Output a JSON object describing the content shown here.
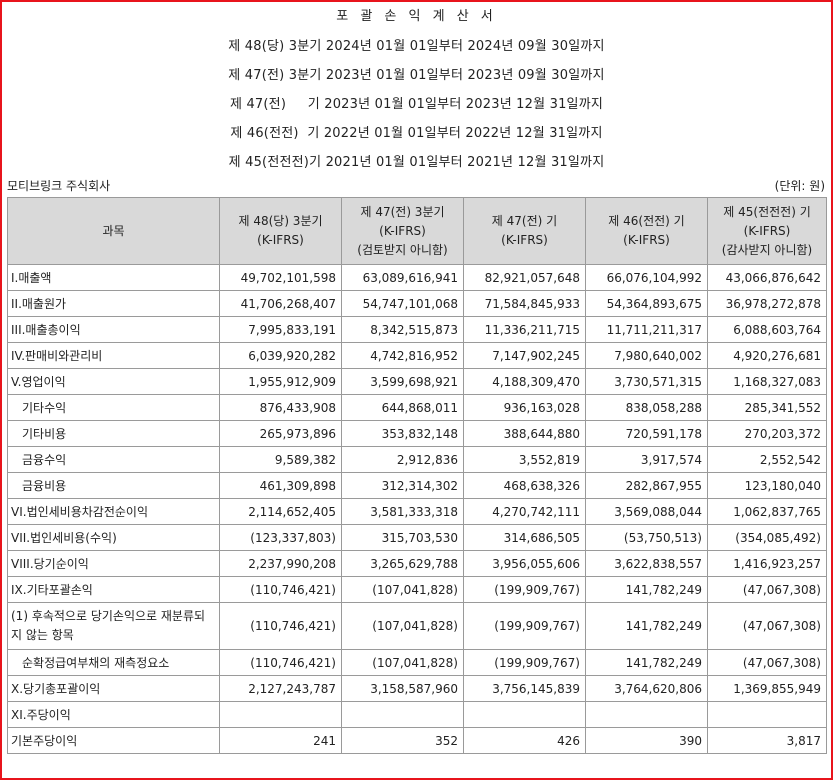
{
  "title": "포 괄 손 익 계 산 서",
  "periods": [
    "제 48(당) 3분기 2024년 01월 01일부터 2024년 09월 30일까지",
    "제 47(전) 3분기 2023년 01월 01일부터 2023년 09월 30일까지",
    "제 47(전)     기 2023년 01월 01일부터 2023년 12월 31일까지",
    "제 46(전전)  기 2022년 01월 01일부터 2022년 12월 31일까지",
    "제 45(전전전)기 2021년 01월 01일부터 2021년 12월 31일까지"
  ],
  "company": "모티브링크 주식회사",
  "unit": "(단위: 원)",
  "headers": {
    "item": "과목",
    "c1": [
      "제 48(당) 3분기",
      "(K-IFRS)"
    ],
    "c2": [
      "제 47(전) 3분기",
      "(K-IFRS)",
      "(검토받지 아니함)"
    ],
    "c3": [
      "제 47(전) 기",
      "(K-IFRS)"
    ],
    "c4": [
      "제 46(전전) 기",
      "(K-IFRS)"
    ],
    "c5": [
      "제 45(전전전) 기",
      "(K-IFRS)",
      "(감사받지 아니함)"
    ]
  },
  "rows": [
    {
      "label": "I.매출액",
      "v": [
        "49,702,101,598",
        "63,089,616,941",
        "82,921,057,648",
        "66,076,104,992",
        "43,066,876,642"
      ]
    },
    {
      "label": "II.매출원가",
      "v": [
        "41,706,268,407",
        "54,747,101,068",
        "71,584,845,933",
        "54,364,893,675",
        "36,978,272,878"
      ]
    },
    {
      "label": "III.매출총이익",
      "v": [
        "7,995,833,191",
        "8,342,515,873",
        "11,336,211,715",
        "11,711,211,317",
        "6,088,603,764"
      ]
    },
    {
      "label": "IV.판매비와관리비",
      "v": [
        "6,039,920,282",
        "4,742,816,952",
        "7,147,902,245",
        "7,980,640,002",
        "4,920,276,681"
      ]
    },
    {
      "label": "V.영업이익",
      "v": [
        "1,955,912,909",
        "3,599,698,921",
        "4,188,309,470",
        "3,730,571,315",
        "1,168,327,083"
      ]
    },
    {
      "label": "기타수익",
      "sub": true,
      "v": [
        "876,433,908",
        "644,868,011",
        "936,163,028",
        "838,058,288",
        "285,341,552"
      ]
    },
    {
      "label": "기타비용",
      "sub": true,
      "v": [
        "265,973,896",
        "353,832,148",
        "388,644,880",
        "720,591,178",
        "270,203,372"
      ]
    },
    {
      "label": "금융수익",
      "sub": true,
      "v": [
        "9,589,382",
        "2,912,836",
        "3,552,819",
        "3,917,574",
        "2,552,542"
      ]
    },
    {
      "label": "금융비용",
      "sub": true,
      "v": [
        "461,309,898",
        "312,314,302",
        "468,638,326",
        "282,867,955",
        "123,180,040"
      ]
    },
    {
      "label": "VI.법인세비용차감전순이익",
      "v": [
        "2,114,652,405",
        "3,581,333,318",
        "4,270,742,111",
        "3,569,088,044",
        "1,062,837,765"
      ]
    },
    {
      "label": "VII.법인세비용(수익)",
      "v": [
        "(123,337,803)",
        "315,703,530",
        "314,686,505",
        "(53,750,513)",
        "(354,085,492)"
      ]
    },
    {
      "label": "VIII.당기순이익",
      "v": [
        "2,237,990,208",
        "3,265,629,788",
        "3,956,055,606",
        "3,622,838,557",
        "1,416,923,257"
      ]
    },
    {
      "label": "IX.기타포괄손익",
      "v": [
        "(110,746,421)",
        "(107,041,828)",
        "(199,909,767)",
        "141,782,249",
        "(47,067,308)"
      ]
    },
    {
      "label": "(1) 후속적으로 당기손익으로 재분류되지 않는 항목",
      "wrap": true,
      "v": [
        "(110,746,421)",
        "(107,041,828)",
        "(199,909,767)",
        "141,782,249",
        "(47,067,308)"
      ]
    },
    {
      "label": "순확정급여부채의 재측정요소",
      "sub": true,
      "v": [
        "(110,746,421)",
        "(107,041,828)",
        "(199,909,767)",
        "141,782,249",
        "(47,067,308)"
      ]
    },
    {
      "label": "X.당기총포괄이익",
      "v": [
        "2,127,243,787",
        "3,158,587,960",
        "3,756,145,839",
        "3,764,620,806",
        "1,369,855,949"
      ]
    },
    {
      "label": "XI.주당이익",
      "v": [
        "",
        "",
        "",
        "",
        ""
      ]
    },
    {
      "label": "기본주당이익",
      "v": [
        "241",
        "352",
        "426",
        "390",
        "3,817"
      ]
    }
  ]
}
